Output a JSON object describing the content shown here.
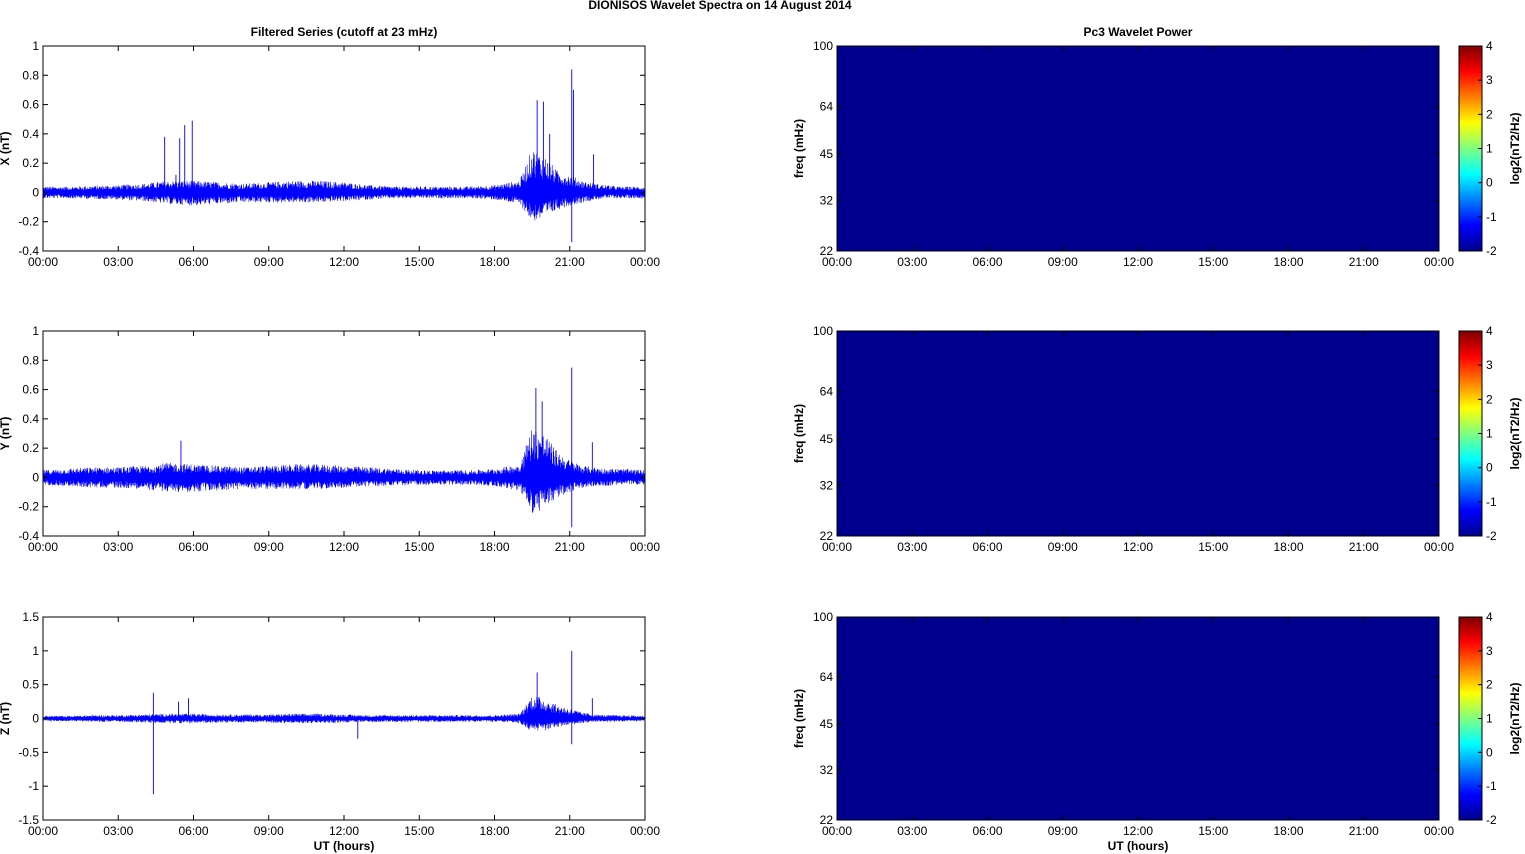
{
  "figure_title": "DIONISOS Wavelet Spectra on 14 August    2014",
  "colors": {
    "trace": "#0000ff",
    "spectrogram_fill": "#00008f",
    "colorbar_stops": [
      "#00008f",
      "#0000ff",
      "#007fff",
      "#00ffff",
      "#7fff7f",
      "#ffff00",
      "#ff7f00",
      "#ff0000",
      "#7f0000"
    ]
  },
  "chart_data": [
    {
      "type": "line",
      "title": "Filtered Series (cutoff at 23 mHz)",
      "ylabel": "X (nT)",
      "xlabel": "",
      "x_tick_labels": [
        "00:00",
        "03:00",
        "06:00",
        "09:00",
        "12:00",
        "15:00",
        "18:00",
        "21:00",
        "00:00"
      ],
      "x_range_hours": [
        0,
        24
      ],
      "ylim": [
        -0.4,
        1
      ],
      "y_ticks": [
        -0.4,
        -0.2,
        0,
        0.2,
        0.4,
        0.6,
        0.8,
        1
      ],
      "y_tick_labels": [
        "-0.4",
        "-0.2",
        "0",
        "0.2",
        "0.4",
        "0.6",
        "0.8",
        "1"
      ],
      "envelope": {
        "hours": [
          0,
          1,
          2,
          3,
          4,
          5,
          6,
          7,
          8,
          9,
          10,
          11,
          12,
          13,
          14,
          15,
          16,
          17,
          18,
          19,
          19.5,
          20,
          20.5,
          21,
          21.5,
          22,
          22.5,
          23,
          24
        ],
        "amp_pos": [
          0.04,
          0.04,
          0.045,
          0.05,
          0.06,
          0.08,
          0.08,
          0.07,
          0.06,
          0.07,
          0.08,
          0.08,
          0.07,
          0.05,
          0.04,
          0.04,
          0.04,
          0.04,
          0.05,
          0.08,
          0.3,
          0.25,
          0.15,
          0.12,
          0.08,
          0.06,
          0.05,
          0.04,
          0.04
        ],
        "amp_neg": [
          0.04,
          0.04,
          0.045,
          0.05,
          0.06,
          0.08,
          0.09,
          0.08,
          0.07,
          0.07,
          0.07,
          0.07,
          0.06,
          0.05,
          0.04,
          0.04,
          0.04,
          0.04,
          0.05,
          0.08,
          0.2,
          0.18,
          0.12,
          0.09,
          0.07,
          0.05,
          0.04,
          0.04,
          0.04
        ]
      },
      "spikes": [
        {
          "hour": 4.85,
          "value": 0.38
        },
        {
          "hour": 5.45,
          "value": 0.37
        },
        {
          "hour": 5.65,
          "value": 0.46
        },
        {
          "hour": 5.95,
          "value": 0.49
        },
        {
          "hour": 5.3,
          "value": 0.12
        },
        {
          "hour": 19.7,
          "value": 0.63
        },
        {
          "hour": 19.95,
          "value": 0.62
        },
        {
          "hour": 20.2,
          "value": 0.4
        },
        {
          "hour": 21.08,
          "value": 0.84
        },
        {
          "hour": 21.08,
          "value": -0.34
        },
        {
          "hour": 21.15,
          "value": 0.7
        },
        {
          "hour": 21.95,
          "value": 0.26
        }
      ]
    },
    {
      "type": "line",
      "title": "",
      "ylabel": "Y (nT)",
      "xlabel": "",
      "x_tick_labels": [
        "00:00",
        "03:00",
        "06:00",
        "09:00",
        "12:00",
        "15:00",
        "18:00",
        "21:00",
        "00:00"
      ],
      "x_range_hours": [
        0,
        24
      ],
      "ylim": [
        -0.4,
        1
      ],
      "y_ticks": [
        -0.4,
        -0.2,
        0,
        0.2,
        0.4,
        0.6,
        0.8,
        1
      ],
      "y_tick_labels": [
        "-0.4",
        "-0.2",
        "0",
        "0.2",
        "0.4",
        "0.6",
        "0.8",
        "1"
      ],
      "envelope": {
        "hours": [
          0,
          1,
          2,
          3,
          4,
          5,
          6,
          7,
          8,
          9,
          10,
          11,
          12,
          13,
          14,
          15,
          16,
          17,
          18,
          19,
          19.5,
          20,
          20.5,
          21,
          21.5,
          22,
          22.5,
          23,
          24
        ],
        "amp_pos": [
          0.05,
          0.06,
          0.07,
          0.07,
          0.08,
          0.1,
          0.09,
          0.08,
          0.07,
          0.08,
          0.09,
          0.09,
          0.08,
          0.07,
          0.06,
          0.05,
          0.05,
          0.05,
          0.06,
          0.09,
          0.35,
          0.3,
          0.18,
          0.12,
          0.08,
          0.07,
          0.06,
          0.06,
          0.05
        ],
        "amp_neg": [
          0.05,
          0.06,
          0.07,
          0.07,
          0.08,
          0.1,
          0.1,
          0.09,
          0.08,
          0.08,
          0.08,
          0.08,
          0.07,
          0.06,
          0.06,
          0.05,
          0.05,
          0.05,
          0.06,
          0.09,
          0.25,
          0.22,
          0.14,
          0.1,
          0.07,
          0.06,
          0.06,
          0.05,
          0.05
        ]
      },
      "spikes": [
        {
          "hour": 5.5,
          "value": 0.25
        },
        {
          "hour": 19.65,
          "value": 0.61
        },
        {
          "hour": 19.9,
          "value": 0.52
        },
        {
          "hour": 21.08,
          "value": 0.75
        },
        {
          "hour": 21.08,
          "value": -0.34
        },
        {
          "hour": 21.9,
          "value": 0.24
        }
      ]
    },
    {
      "type": "line",
      "title": "",
      "ylabel": "Z (nT)",
      "xlabel": "UT (hours)",
      "x_tick_labels": [
        "00:00",
        "03:00",
        "06:00",
        "09:00",
        "12:00",
        "15:00",
        "18:00",
        "21:00",
        "00:00"
      ],
      "x_range_hours": [
        0,
        24
      ],
      "ylim": [
        -1.5,
        1.5
      ],
      "y_ticks": [
        -1.5,
        -1,
        -0.5,
        0,
        0.5,
        1,
        1.5
      ],
      "y_tick_labels": [
        "-1.5",
        "-1",
        "-0.5",
        "0",
        "0.5",
        "1",
        "1.5"
      ],
      "envelope": {
        "hours": [
          0,
          1,
          2,
          3,
          4,
          5,
          6,
          7,
          8,
          9,
          10,
          11,
          12,
          13,
          14,
          15,
          16,
          17,
          18,
          19,
          19.5,
          20,
          20.5,
          21,
          21.5,
          22,
          22.5,
          23,
          24
        ],
        "amp_pos": [
          0.04,
          0.04,
          0.05,
          0.05,
          0.06,
          0.07,
          0.07,
          0.06,
          0.06,
          0.06,
          0.07,
          0.07,
          0.06,
          0.05,
          0.05,
          0.05,
          0.05,
          0.05,
          0.05,
          0.07,
          0.35,
          0.3,
          0.2,
          0.15,
          0.09,
          0.06,
          0.05,
          0.05,
          0.04
        ],
        "amp_neg": [
          0.04,
          0.04,
          0.05,
          0.05,
          0.06,
          0.07,
          0.07,
          0.06,
          0.06,
          0.06,
          0.07,
          0.07,
          0.06,
          0.05,
          0.05,
          0.05,
          0.05,
          0.05,
          0.05,
          0.07,
          0.2,
          0.18,
          0.13,
          0.1,
          0.07,
          0.05,
          0.05,
          0.05,
          0.04
        ]
      },
      "spikes": [
        {
          "hour": 4.4,
          "value": 0.38
        },
        {
          "hour": 4.4,
          "value": -1.12
        },
        {
          "hour": 5.4,
          "value": 0.25
        },
        {
          "hour": 5.8,
          "value": 0.3
        },
        {
          "hour": 12.55,
          "value": -0.3
        },
        {
          "hour": 19.7,
          "value": 0.68
        },
        {
          "hour": 21.08,
          "value": 1.0
        },
        {
          "hour": 21.08,
          "value": -0.38
        },
        {
          "hour": 21.9,
          "value": 0.3
        }
      ]
    },
    {
      "type": "heatmap",
      "title": "Pc3 Wavelet Power",
      "ylabel": "freq (mHz)",
      "xlabel": "",
      "x_tick_labels": [
        "00:00",
        "03:00",
        "06:00",
        "09:00",
        "12:00",
        "15:00",
        "18:00",
        "21:00",
        "00:00"
      ],
      "x_range_hours": [
        0,
        24
      ],
      "y_scale": "log",
      "ylim": [
        22,
        100
      ],
      "y_ticks": [
        22,
        32,
        45,
        64,
        100
      ],
      "y_tick_labels": [
        "22",
        "32",
        "45",
        "64",
        "100"
      ],
      "colorbar_label": "log2(nT2/Hz)",
      "colorbar_range": [
        -2,
        4
      ],
      "colorbar_ticks": [
        -2,
        -1,
        0,
        1,
        2,
        3,
        4
      ],
      "colorbar_tick_labels": [
        "-2",
        "-1",
        "0",
        "1",
        "2",
        "3",
        "4"
      ],
      "values": "uniformly near -2 (minimum) over the whole panel"
    },
    {
      "type": "heatmap",
      "title": "",
      "ylabel": "freq (mHz)",
      "xlabel": "",
      "x_tick_labels": [
        "00:00",
        "03:00",
        "06:00",
        "09:00",
        "12:00",
        "15:00",
        "18:00",
        "21:00",
        "00:00"
      ],
      "x_range_hours": [
        0,
        24
      ],
      "y_scale": "log",
      "ylim": [
        22,
        100
      ],
      "y_ticks": [
        22,
        32,
        45,
        64,
        100
      ],
      "y_tick_labels": [
        "22",
        "32",
        "45",
        "64",
        "100"
      ],
      "colorbar_label": "log2(nT2/Hz)",
      "colorbar_range": [
        -2,
        4
      ],
      "colorbar_ticks": [
        -2,
        -1,
        0,
        1,
        2,
        3,
        4
      ],
      "colorbar_tick_labels": [
        "-2",
        "-1",
        "0",
        "1",
        "2",
        "3",
        "4"
      ],
      "values": "uniformly near -2 (minimum) over the whole panel"
    },
    {
      "type": "heatmap",
      "title": "",
      "ylabel": "freq (mHz)",
      "xlabel": "UT (hours)",
      "x_tick_labels": [
        "00:00",
        "03:00",
        "06:00",
        "09:00",
        "12:00",
        "15:00",
        "18:00",
        "21:00",
        "00:00"
      ],
      "x_range_hours": [
        0,
        24
      ],
      "y_scale": "log",
      "ylim": [
        22,
        100
      ],
      "y_ticks": [
        22,
        32,
        45,
        64,
        100
      ],
      "y_tick_labels": [
        "22",
        "32",
        "45",
        "64",
        "100"
      ],
      "colorbar_label": "log2(nT2/Hz)",
      "colorbar_range": [
        -2,
        4
      ],
      "colorbar_ticks": [
        -2,
        -1,
        0,
        1,
        2,
        3,
        4
      ],
      "colorbar_tick_labels": [
        "-2",
        "-1",
        "0",
        "1",
        "2",
        "3",
        "4"
      ],
      "values": "uniformly near -2 (minimum) over the whole panel"
    }
  ]
}
